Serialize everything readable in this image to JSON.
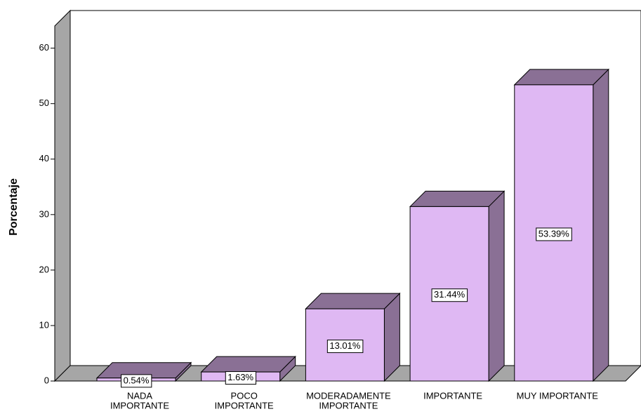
{
  "chart_data": {
    "type": "bar3d",
    "y_label": "Porcentaje",
    "categories": [
      [
        "NADA",
        "IMPORTANTE"
      ],
      [
        "POCO",
        "IMPORTANTE"
      ],
      [
        "MODERADAMENTE",
        "IMPORTANTE"
      ],
      [
        "IMPORTANTE"
      ],
      [
        "MUY IMPORTANTE"
      ]
    ],
    "values": [
      0.54,
      1.63,
      13.01,
      31.44,
      53.39
    ],
    "value_labels": [
      "0.54%",
      "1.63%",
      "13.01%",
      "31.44%",
      "53.39%"
    ],
    "color": "#dfb8f3",
    "side_color": "#8a7095",
    "ylim": [
      0,
      64
    ],
    "yticks": [
      0,
      10,
      20,
      30,
      40,
      50,
      60
    ]
  }
}
